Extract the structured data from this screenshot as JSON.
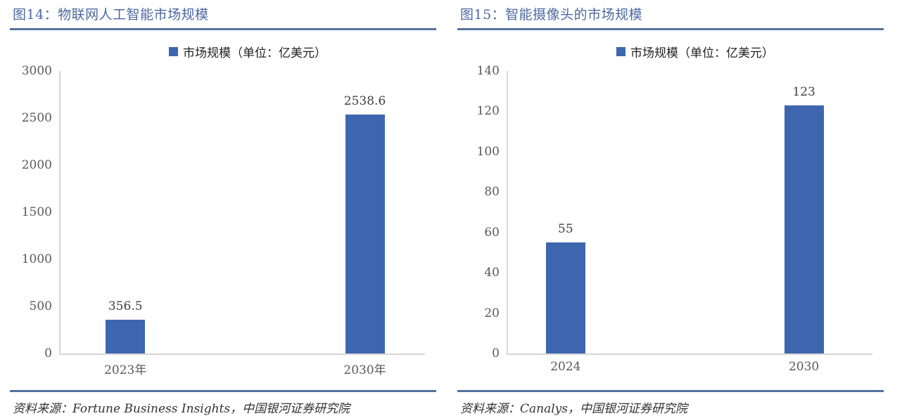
{
  "page": {
    "background": "#FFFFFF"
  },
  "colors": {
    "title_text": "#4C68A1",
    "divider": "#53739D",
    "bar": "#3D66AE",
    "axis_line": "#D6D6D6",
    "tick_label": "#595959",
    "data_label": "#3F3F3F",
    "legend_text": "#1F1F1F",
    "source_text": "#333333"
  },
  "chart_data": [
    {
      "type": "bar",
      "title": "图14：物联网人工智能市场规模",
      "legend": "市场规模（单位：亿美元）",
      "legend_position": "top",
      "categories": [
        "2023年",
        "2030年"
      ],
      "values": [
        356.5,
        2538.6
      ],
      "data_labels": [
        "356.5",
        "2538.6"
      ],
      "xlabel": "",
      "ylabel": "",
      "ylim": [
        0,
        3000
      ],
      "yticks": [
        0,
        500,
        1000,
        1500,
        2000,
        2500,
        3000
      ],
      "grid": false,
      "bar_color": "#3D66AE",
      "source": "资料来源：Fortune Business Insights，中国银河证券研究院"
    },
    {
      "type": "bar",
      "title": "图15：智能摄像头的市场规模",
      "legend": "市场规模（单位：亿美元）",
      "legend_position": "top",
      "categories": [
        "2024",
        "2030"
      ],
      "values": [
        55,
        123
      ],
      "data_labels": [
        "55",
        "123"
      ],
      "xlabel": "",
      "ylabel": "",
      "ylim": [
        0,
        140
      ],
      "yticks": [
        0,
        20,
        40,
        60,
        80,
        100,
        120,
        140
      ],
      "grid": false,
      "bar_color": "#3D66AE",
      "source": "资料来源：Canalys，中国银河证券研究院"
    }
  ]
}
